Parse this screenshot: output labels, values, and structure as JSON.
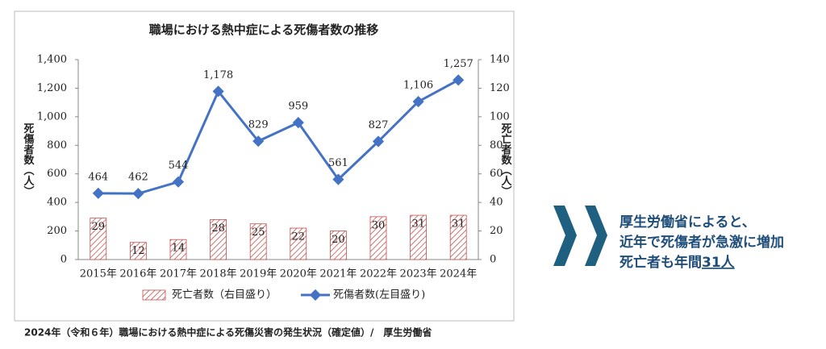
{
  "chart_data": {
    "type": "combo",
    "title": "職場における熱中症による死傷者数の推移",
    "y_label": "死傷者数（人）",
    "y2_label": "死亡者数（人）",
    "categories": [
      "2015年",
      "2016年",
      "2017年",
      "2018年",
      "2019年",
      "2020年",
      "2021年",
      "2022年",
      "2023年",
      "2024年"
    ],
    "series": [
      {
        "name": "死亡者数（右目盛り）",
        "type": "bar",
        "axis": "y2",
        "color": "#c0504d",
        "values": [
          29,
          12,
          14,
          28,
          25,
          22,
          20,
          30,
          31,
          31
        ]
      },
      {
        "name": "死傷者数(左目盛り)",
        "type": "line",
        "color": "#4472c4",
        "values": [
          464,
          462,
          544,
          1178,
          829,
          959,
          561,
          827,
          1106,
          1257
        ],
        "value_labels": [
          "464",
          "462",
          "544",
          "1,178",
          "829",
          "959",
          "561",
          "827",
          "1,106",
          "1,257"
        ]
      }
    ],
    "ylim": [
      0,
      1400
    ],
    "yticks": [
      0,
      200,
      400,
      600,
      800,
      {
        "value": 1000,
        "label": "1,000"
      },
      {
        "value": 1200,
        "label": "1,200"
      },
      {
        "value": 1400,
        "label": "1,400"
      }
    ],
    "y2lim": [
      0,
      140
    ],
    "y2ticks": [
      0,
      20,
      40,
      60,
      80,
      100,
      120,
      140
    ],
    "legend": "bottom"
  },
  "caption": "2024年（令和６年）職場における熱中症による死傷災害の発生状況（確定値）/　厚生労働省",
  "callout": {
    "lines": [
      "厚生労働省によると、",
      "近年で死傷者が急激に増加",
      "死亡者も年間"
    ],
    "highlight": "31人"
  }
}
